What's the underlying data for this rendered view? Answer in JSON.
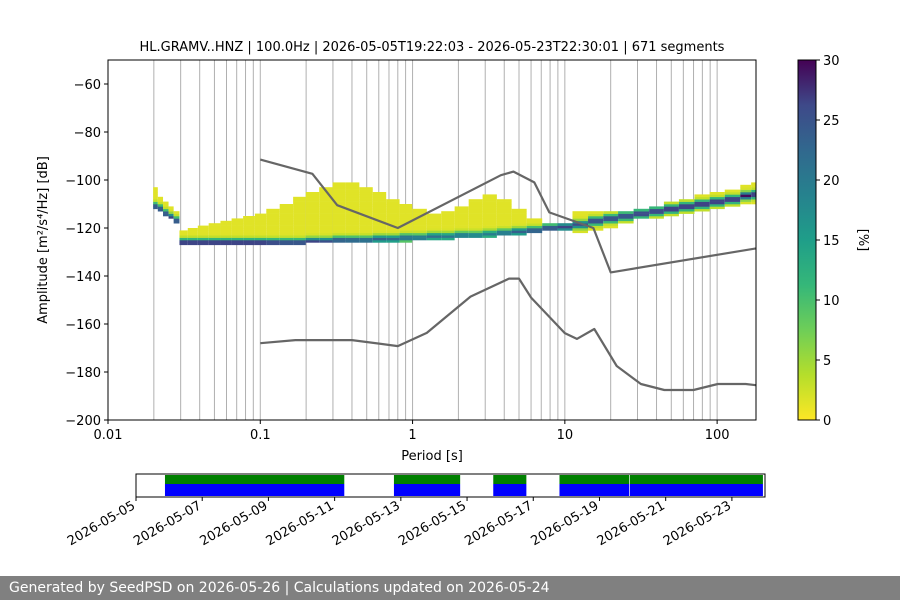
{
  "chart_data": {
    "type": "heatmap",
    "title": "HL.GRAMV..HNZ | 100.0Hz | 2026-05-05T19:22:03 - 2026-05-23T22:30:01 | 671 segments",
    "xlabel": "Period [s]",
    "ylabel": "Amplitude [m²/s⁴/Hz] [dB]",
    "xscale": "log",
    "xlim": [
      0.01,
      180
    ],
    "ylim": [
      -200,
      -50
    ],
    "x_ticks": [
      {
        "value": 0.01,
        "label": "0.01"
      },
      {
        "value": 0.1,
        "label": "0.1"
      },
      {
        "value": 1,
        "label": "1"
      },
      {
        "value": 10,
        "label": "10"
      },
      {
        "value": 100,
        "label": "100"
      }
    ],
    "y_ticks": [
      {
        "value": -60,
        "label": "−60"
      },
      {
        "value": -80,
        "label": "−80"
      },
      {
        "value": -100,
        "label": "−100"
      },
      {
        "value": -120,
        "label": "−120"
      },
      {
        "value": -140,
        "label": "−140"
      },
      {
        "value": -160,
        "label": "−160"
      },
      {
        "value": -180,
        "label": "−180"
      },
      {
        "value": -200,
        "label": "−200"
      }
    ],
    "grid": "vertical",
    "colormap": "viridis_r",
    "colorbar": {
      "label": "[%]",
      "range": [
        0,
        30
      ],
      "ticks": [
        {
          "value": 0,
          "label": "0"
        },
        {
          "value": 5,
          "label": "5"
        },
        {
          "value": 10,
          "label": "10"
        },
        {
          "value": 15,
          "label": "15"
        },
        {
          "value": 20,
          "label": "20"
        },
        {
          "value": 25,
          "label": "25"
        },
        {
          "value": 30,
          "label": "30"
        }
      ]
    },
    "high_noise_model": {
      "color": "#666666",
      "points": [
        [
          0.1,
          -91.5
        ],
        [
          0.22,
          -97.4
        ],
        [
          0.32,
          -110.5
        ],
        [
          0.8,
          -120
        ],
        [
          3.8,
          -98
        ],
        [
          4.6,
          -96.5
        ],
        [
          6.3,
          -101
        ],
        [
          7.9,
          -113.5
        ],
        [
          15.4,
          -120
        ],
        [
          20,
          -138.5
        ],
        [
          180,
          -128.5
        ]
      ]
    },
    "low_noise_model": {
      "color": "#666666",
      "points": [
        [
          0.1,
          -168
        ],
        [
          0.17,
          -166.7
        ],
        [
          0.4,
          -166.7
        ],
        [
          0.8,
          -169.2
        ],
        [
          1.24,
          -163.7
        ],
        [
          2.4,
          -148.6
        ],
        [
          4.3,
          -141.1
        ],
        [
          5.0,
          -141.1
        ],
        [
          6.0,
          -149
        ],
        [
          10,
          -163.8
        ],
        [
          12,
          -166.2
        ],
        [
          15.6,
          -162.1
        ],
        [
          21.9,
          -177.5
        ],
        [
          31.6,
          -185
        ],
        [
          45,
          -187.5
        ],
        [
          70,
          -187.5
        ],
        [
          101,
          -185
        ],
        [
          154,
          -185
        ],
        [
          180,
          -185.5
        ]
      ]
    },
    "psd_density": [
      {
        "period": 0.0205,
        "lo": -112,
        "hi": -103,
        "peak": -111,
        "max_pct": 25
      },
      {
        "period": 0.022,
        "lo": -113,
        "hi": -107,
        "peak": -112,
        "max_pct": 25
      },
      {
        "period": 0.024,
        "lo": -115,
        "hi": -109,
        "peak": -114,
        "max_pct": 25
      },
      {
        "period": 0.026,
        "lo": -116,
        "hi": -111,
        "peak": -115.5,
        "max_pct": 25
      },
      {
        "period": 0.028,
        "lo": -118,
        "hi": -113,
        "peak": -117,
        "max_pct": 25
      },
      {
        "period": 0.031,
        "lo": -127,
        "hi": -121,
        "peak": -126,
        "max_pct": 28
      },
      {
        "period": 0.036,
        "lo": -127,
        "hi": -120,
        "peak": -126,
        "max_pct": 28
      },
      {
        "period": 0.042,
        "lo": -127,
        "hi": -119,
        "peak": -126,
        "max_pct": 28
      },
      {
        "period": 0.05,
        "lo": -127,
        "hi": -118,
        "peak": -126,
        "max_pct": 28
      },
      {
        "period": 0.06,
        "lo": -127,
        "hi": -117,
        "peak": -126,
        "max_pct": 28
      },
      {
        "period": 0.07,
        "lo": -127,
        "hi": -116,
        "peak": -126,
        "max_pct": 28
      },
      {
        "period": 0.085,
        "lo": -127,
        "hi": -115,
        "peak": -126,
        "max_pct": 28
      },
      {
        "period": 0.1,
        "lo": -127,
        "hi": -114,
        "peak": -126,
        "max_pct": 28
      },
      {
        "period": 0.12,
        "lo": -127,
        "hi": -112,
        "peak": -126,
        "max_pct": 27
      },
      {
        "period": 0.15,
        "lo": -127,
        "hi": -110,
        "peak": -126,
        "max_pct": 26
      },
      {
        "period": 0.18,
        "lo": -127,
        "hi": -107,
        "peak": -126,
        "max_pct": 26
      },
      {
        "period": 0.22,
        "lo": -126,
        "hi": -105,
        "peak": -125.5,
        "max_pct": 25
      },
      {
        "period": 0.27,
        "lo": -126,
        "hi": -103,
        "peak": -125.5,
        "max_pct": 24
      },
      {
        "period": 0.33,
        "lo": -126,
        "hi": -101,
        "peak": -125,
        "max_pct": 24
      },
      {
        "period": 0.4,
        "lo": -126,
        "hi": -101,
        "peak": -125,
        "max_pct": 23
      },
      {
        "period": 0.5,
        "lo": -126,
        "hi": -103,
        "peak": -125,
        "max_pct": 22
      },
      {
        "period": 0.6,
        "lo": -126,
        "hi": -105,
        "peak": -124.5,
        "max_pct": 22
      },
      {
        "period": 0.75,
        "lo": -126,
        "hi": -108,
        "peak": -124.5,
        "max_pct": 21
      },
      {
        "period": 0.9,
        "lo": -126,
        "hi": -110,
        "peak": -124,
        "max_pct": 21
      },
      {
        "period": 1.1,
        "lo": -125,
        "hi": -112,
        "peak": -124,
        "max_pct": 20
      },
      {
        "period": 1.4,
        "lo": -125,
        "hi": -114,
        "peak": -123.5,
        "max_pct": 20
      },
      {
        "period": 1.7,
        "lo": -125,
        "hi": -113,
        "peak": -123.5,
        "max_pct": 19
      },
      {
        "period": 2.1,
        "lo": -124,
        "hi": -111,
        "peak": -123,
        "max_pct": 19
      },
      {
        "period": 2.6,
        "lo": -124,
        "hi": -108,
        "peak": -123,
        "max_pct": 18
      },
      {
        "period": 3.2,
        "lo": -124,
        "hi": -106,
        "peak": -122.5,
        "max_pct": 18
      },
      {
        "period": 4.0,
        "lo": -123,
        "hi": -108,
        "peak": -122,
        "max_pct": 20
      },
      {
        "period": 5.0,
        "lo": -123,
        "hi": -112,
        "peak": -121.5,
        "max_pct": 22
      },
      {
        "period": 6.3,
        "lo": -122,
        "hi": -116,
        "peak": -121,
        "max_pct": 24
      },
      {
        "period": 8,
        "lo": -121,
        "hi": -118,
        "peak": -120,
        "max_pct": 25
      },
      {
        "period": 10,
        "lo": -121,
        "hi": -118,
        "peak": -119.5,
        "max_pct": 25
      },
      {
        "period": 12.6,
        "lo": -122,
        "hi": -113,
        "peak": -118.5,
        "max_pct": 24
      },
      {
        "period": 16,
        "lo": -121,
        "hi": -113,
        "peak": -117,
        "max_pct": 26
      },
      {
        "period": 20,
        "lo": -120,
        "hi": -113,
        "peak": -116,
        "max_pct": 26
      },
      {
        "period": 25,
        "lo": -118,
        "hi": -113,
        "peak": -115,
        "max_pct": 26
      },
      {
        "period": 32,
        "lo": -116,
        "hi": -112,
        "peak": -114,
        "max_pct": 27
      },
      {
        "period": 40,
        "lo": -116,
        "hi": -111,
        "peak": -113,
        "max_pct": 27
      },
      {
        "period": 50,
        "lo": -115,
        "hi": -109,
        "peak": -112,
        "max_pct": 28
      },
      {
        "period": 63,
        "lo": -114,
        "hi": -108,
        "peak": -111,
        "max_pct": 28
      },
      {
        "period": 80,
        "lo": -113,
        "hi": -106,
        "peak": -110,
        "max_pct": 28
      },
      {
        "period": 100,
        "lo": -112,
        "hi": -105,
        "peak": -109,
        "max_pct": 28
      },
      {
        "period": 126,
        "lo": -111,
        "hi": -104,
        "peak": -108,
        "max_pct": 28
      },
      {
        "period": 160,
        "lo": -110,
        "hi": -102,
        "peak": -106.5,
        "max_pct": 28
      },
      {
        "period": 175,
        "lo": -110,
        "hi": -101,
        "peak": -106,
        "max_pct": 28
      }
    ],
    "coverage": {
      "date_range": [
        "2026-05-05",
        "2026-05-24"
      ],
      "date_ticks": [
        {
          "value": "2026-05-05",
          "label": "2026-05-05"
        },
        {
          "value": "2026-05-07",
          "label": "2026-05-07"
        },
        {
          "value": "2026-05-09",
          "label": "2026-05-09"
        },
        {
          "value": "2026-05-11",
          "label": "2026-05-11"
        },
        {
          "value": "2026-05-13",
          "label": "2026-05-13"
        },
        {
          "value": "2026-05-15",
          "label": "2026-05-15"
        },
        {
          "value": "2026-05-17",
          "label": "2026-05-17"
        },
        {
          "value": "2026-05-19",
          "label": "2026-05-19"
        },
        {
          "value": "2026-05-21",
          "label": "2026-05-21"
        },
        {
          "value": "2026-05-23",
          "label": "2026-05-23"
        }
      ],
      "data_color": "#0000ff",
      "psd_color": "#008000",
      "segments": [
        [
          "2026-05-05T21:00",
          "2026-05-11T07:00"
        ],
        [
          "2026-05-12T19:00",
          "2026-05-14T19:00"
        ],
        [
          "2026-05-15T19:00",
          "2026-05-16T19:00"
        ],
        [
          "2026-05-17T19:00",
          "2026-05-19T21:30"
        ],
        [
          "2026-05-19T22:00",
          "2026-05-23T22:30"
        ]
      ]
    }
  },
  "footer": {
    "text": "Generated by SeedPSD on 2026-05-26 | Calculations updated on 2026-05-24"
  }
}
